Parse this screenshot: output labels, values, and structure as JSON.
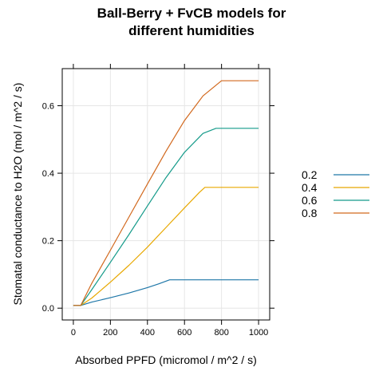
{
  "chart_data": {
    "type": "line",
    "title_lines": [
      "Ball-Berry + FvCB models for",
      "different humidities"
    ],
    "xlabel": "Absorbed PPFD (micromol / m^2 / s)",
    "ylabel": "Stomatal conductance to H2O (mol / m^2 / s)",
    "xlim": [
      -60,
      1060
    ],
    "ylim": [
      -0.035,
      0.71
    ],
    "x_ticks": [
      0,
      200,
      400,
      600,
      800,
      1000
    ],
    "y_ticks": [
      0.0,
      0.2,
      0.4,
      0.6
    ],
    "x_tick_labels": [
      "0",
      "200",
      "400",
      "600",
      "800",
      "1000"
    ],
    "y_tick_labels": [
      "0.0",
      "0.2",
      "0.4",
      "0.6"
    ],
    "grid": true,
    "legend_position": "right",
    "series": [
      {
        "name": "0.2",
        "color": "#1f77a8",
        "x": [
          0,
          40,
          100,
          200,
          300,
          400,
          460,
          520,
          600,
          700,
          800,
          900,
          1000
        ],
        "y": [
          0.008,
          0.008,
          0.018,
          0.031,
          0.045,
          0.061,
          0.072,
          0.084,
          0.084,
          0.084,
          0.084,
          0.084,
          0.084
        ]
      },
      {
        "name": "0.4",
        "color": "#e8a800",
        "x": [
          0,
          40,
          100,
          200,
          300,
          400,
          500,
          600,
          680,
          710,
          800,
          900,
          1000
        ],
        "y": [
          0.008,
          0.008,
          0.03,
          0.077,
          0.127,
          0.181,
          0.239,
          0.297,
          0.343,
          0.358,
          0.358,
          0.358,
          0.358
        ]
      },
      {
        "name": "0.6",
        "color": "#159b8a",
        "x": [
          0,
          40,
          100,
          200,
          300,
          400,
          500,
          600,
          700,
          770,
          800,
          900,
          1000
        ],
        "y": [
          0.008,
          0.008,
          0.055,
          0.136,
          0.218,
          0.303,
          0.387,
          0.462,
          0.518,
          0.533,
          0.533,
          0.533,
          0.533
        ]
      },
      {
        "name": "0.8",
        "color": "#d2691e",
        "x": [
          0,
          40,
          100,
          200,
          300,
          400,
          500,
          600,
          700,
          800,
          900,
          1000
        ],
        "y": [
          0.008,
          0.008,
          0.074,
          0.172,
          0.27,
          0.368,
          0.465,
          0.556,
          0.629,
          0.674,
          0.674,
          0.674
        ]
      }
    ]
  }
}
